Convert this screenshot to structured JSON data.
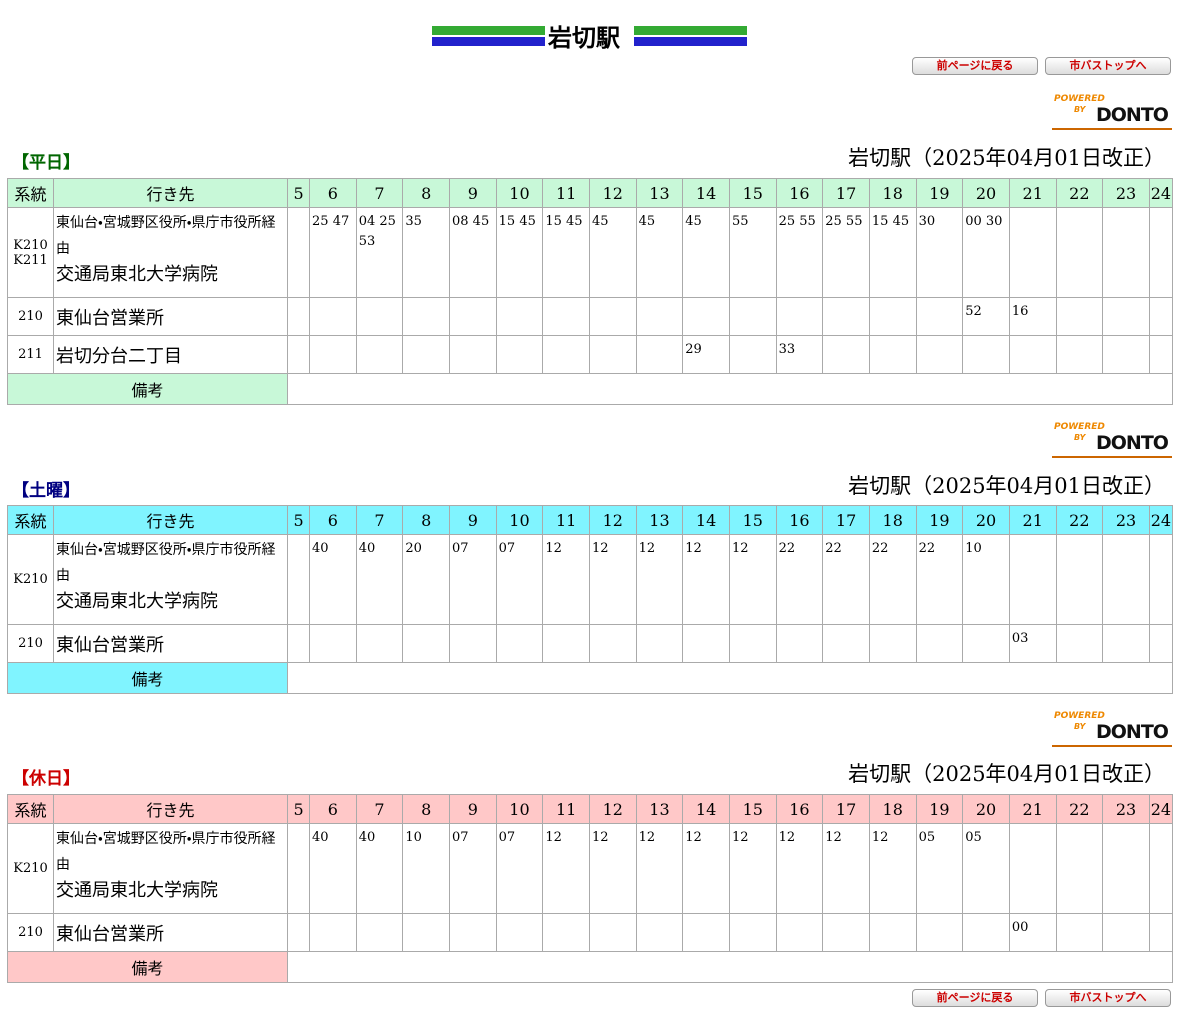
{
  "header": {
    "title": "岩切駅"
  },
  "nav": {
    "back": "前ページに戻る",
    "top": "市バストップへ"
  },
  "logo": {
    "powered": "POWERED",
    "by": "BY",
    "brand": "DONTO"
  },
  "sections": [
    {
      "label": "【平日】",
      "heading": "岩切駅（2025年04月01日改正）",
      "col_route": "系統",
      "col_dest": "行き先",
      "hours": [
        5,
        6,
        7,
        8,
        9,
        10,
        11,
        12,
        13,
        14,
        15,
        16,
        17,
        18,
        19,
        20,
        21,
        22,
        23,
        24
      ],
      "rows": [
        {
          "route": "K210 K211",
          "note": "東仙台・宮城野区役所・県庁市役所経由",
          "dest": "交通局東北大学病院",
          "times": [
            null,
            "25 47",
            "04 25 53",
            "35",
            "08 45",
            "15 45",
            "15 45",
            "45",
            "45",
            "45",
            "55",
            "25 55",
            "25 55",
            "15 45",
            "30",
            "00 30",
            null,
            null,
            null,
            null
          ]
        },
        {
          "route": "210",
          "dest": "東仙台営業所",
          "times": [
            null,
            null,
            null,
            null,
            null,
            null,
            null,
            null,
            null,
            null,
            null,
            null,
            null,
            null,
            null,
            "52",
            "16",
            null,
            null,
            null
          ]
        },
        {
          "route": "211",
          "dest": "岩切分台二丁目",
          "times": [
            null,
            null,
            null,
            null,
            null,
            null,
            null,
            null,
            null,
            "29",
            null,
            "33",
            null,
            null,
            null,
            null,
            null,
            null,
            null,
            null
          ]
        }
      ],
      "remarks": "備考"
    },
    {
      "label": "【土曜】",
      "heading": "岩切駅（2025年04月01日改正）",
      "col_route": "系統",
      "col_dest": "行き先",
      "hours": [
        5,
        6,
        7,
        8,
        9,
        10,
        11,
        12,
        13,
        14,
        15,
        16,
        17,
        18,
        19,
        20,
        21,
        22,
        23,
        24
      ],
      "rows": [
        {
          "route": "K210",
          "note": "東仙台・宮城野区役所・県庁市役所経由",
          "dest": "交通局東北大学病院",
          "times": [
            null,
            "40",
            "40",
            "20",
            "07",
            "07",
            "12",
            "12",
            "12",
            "12",
            "12",
            "22",
            "22",
            "22",
            "22",
            "10",
            null,
            null,
            null,
            null
          ]
        },
        {
          "route": "210",
          "dest": "東仙台営業所",
          "times": [
            null,
            null,
            null,
            null,
            null,
            null,
            null,
            null,
            null,
            null,
            null,
            null,
            null,
            null,
            null,
            null,
            "03",
            null,
            null,
            null
          ]
        }
      ],
      "remarks": "備考"
    },
    {
      "label": "【休日】",
      "heading": "岩切駅（2025年04月01日改正）",
      "col_route": "系統",
      "col_dest": "行き先",
      "hours": [
        5,
        6,
        7,
        8,
        9,
        10,
        11,
        12,
        13,
        14,
        15,
        16,
        17,
        18,
        19,
        20,
        21,
        22,
        23,
        24
      ],
      "rows": [
        {
          "route": "K210",
          "note": "東仙台・宮城野区役所・県庁市役所経由",
          "dest": "交通局東北大学病院",
          "times": [
            null,
            "40",
            "40",
            "10",
            "07",
            "07",
            "12",
            "12",
            "12",
            "12",
            "12",
            "12",
            "12",
            "12",
            "05",
            "05",
            null,
            null,
            null,
            null
          ]
        },
        {
          "route": "210",
          "dest": "東仙台営業所",
          "times": [
            null,
            null,
            null,
            null,
            null,
            null,
            null,
            null,
            null,
            null,
            null,
            null,
            null,
            null,
            null,
            null,
            "00",
            null,
            null,
            null
          ]
        }
      ],
      "remarks": "備考"
    }
  ]
}
